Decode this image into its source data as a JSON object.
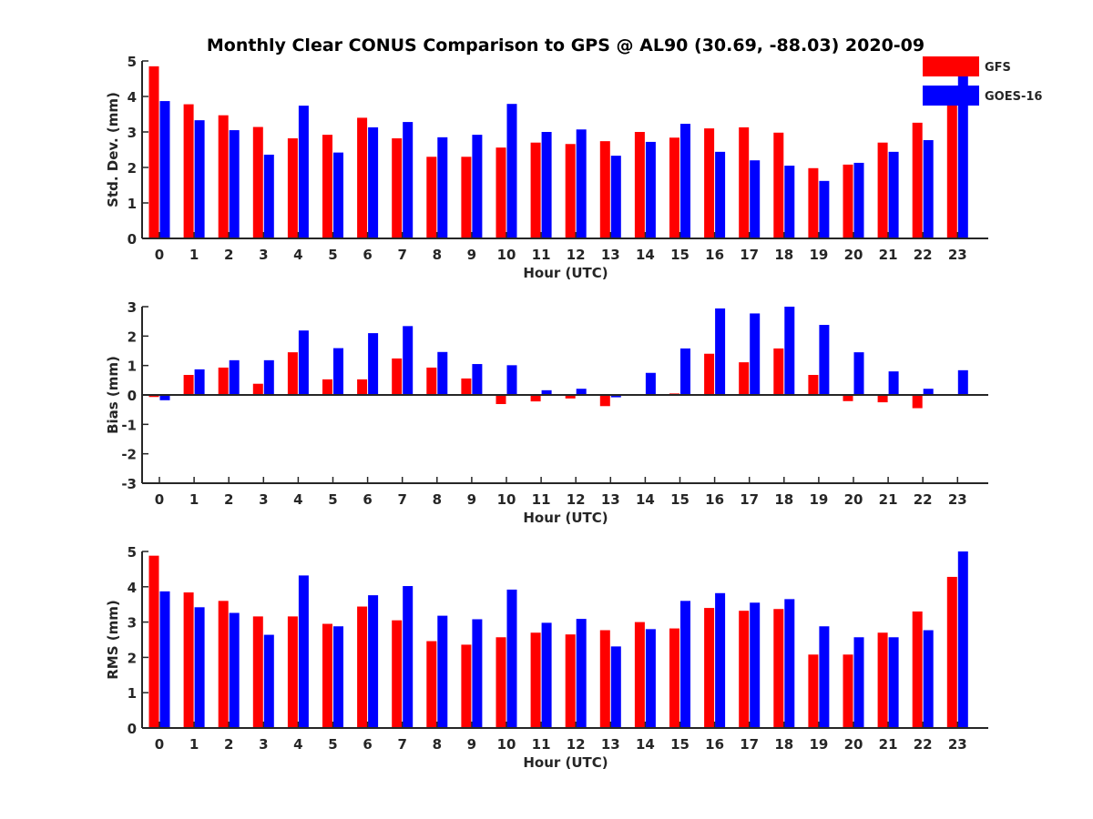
{
  "title": "Monthly Clear CONUS Comparison to GPS @ AL90 (30.69, -88.03) 2020-09",
  "colors": {
    "GFS": "#ff0000",
    "GOES-16": "#0000ff"
  },
  "legend": [
    {
      "name": "GFS",
      "color": "#ff0000"
    },
    {
      "name": "GOES-16",
      "color": "#0000ff"
    }
  ],
  "chart_data": [
    {
      "type": "bar",
      "id": "stddev",
      "xlabel": "Hour (UTC)",
      "ylabel": "Std. Dev. (mm)",
      "ylim": [
        0,
        5
      ],
      "yticks": [
        0,
        1,
        2,
        3,
        4,
        5
      ],
      "categories": [
        "0",
        "1",
        "2",
        "3",
        "4",
        "5",
        "6",
        "7",
        "8",
        "9",
        "10",
        "11",
        "12",
        "13",
        "14",
        "15",
        "16",
        "17",
        "18",
        "19",
        "20",
        "21",
        "22",
        "23"
      ],
      "series": [
        {
          "name": "GFS",
          "color": "#ff0000",
          "values": [
            4.85,
            3.78,
            3.47,
            3.14,
            2.82,
            2.92,
            3.4,
            2.82,
            2.3,
            2.3,
            2.56,
            2.7,
            2.66,
            2.74,
            3.0,
            2.84,
            3.1,
            3.13,
            2.98,
            1.98,
            2.08,
            2.7,
            3.26,
            3.9
          ]
        },
        {
          "name": "GOES-16",
          "color": "#0000ff",
          "values": [
            3.87,
            3.33,
            3.05,
            2.36,
            3.74,
            2.42,
            3.13,
            3.28,
            2.85,
            2.92,
            3.79,
            3.0,
            3.07,
            2.33,
            2.72,
            3.23,
            2.44,
            2.2,
            2.05,
            1.62,
            2.13,
            2.44,
            2.77,
            4.8
          ]
        }
      ]
    },
    {
      "type": "bar",
      "id": "bias",
      "xlabel": "Hour (UTC)",
      "ylabel": "Bias (mm)",
      "ylim": [
        -3,
        3
      ],
      "yticks": [
        -3,
        -2,
        -1,
        0,
        1,
        2,
        3
      ],
      "categories": [
        "0",
        "1",
        "2",
        "3",
        "4",
        "5",
        "6",
        "7",
        "8",
        "9",
        "10",
        "11",
        "12",
        "13",
        "14",
        "15",
        "16",
        "17",
        "18",
        "19",
        "20",
        "21",
        "22",
        "23"
      ],
      "series": [
        {
          "name": "GFS",
          "color": "#ff0000",
          "values": [
            -0.07,
            0.68,
            0.93,
            0.38,
            1.45,
            0.53,
            0.53,
            1.24,
            0.93,
            0.56,
            -0.31,
            -0.22,
            -0.12,
            -0.38,
            -0.03,
            0.05,
            1.4,
            1.11,
            1.58,
            0.68,
            -0.21,
            -0.25,
            -0.45,
            -0.03
          ]
        },
        {
          "name": "GOES-16",
          "color": "#0000ff",
          "values": [
            -0.18,
            0.87,
            1.18,
            1.18,
            2.19,
            1.59,
            2.1,
            2.34,
            1.46,
            1.05,
            1.01,
            0.16,
            0.21,
            -0.08,
            0.75,
            1.58,
            2.94,
            2.77,
            3.0,
            2.38,
            1.45,
            0.8,
            0.21,
            0.84
          ]
        }
      ]
    },
    {
      "type": "bar",
      "id": "rms",
      "xlabel": "Hour (UTC)",
      "ylabel": "RMS (mm)",
      "ylim": [
        0,
        5
      ],
      "yticks": [
        0,
        1,
        2,
        3,
        4,
        5
      ],
      "categories": [
        "0",
        "1",
        "2",
        "3",
        "4",
        "5",
        "6",
        "7",
        "8",
        "9",
        "10",
        "11",
        "12",
        "13",
        "14",
        "15",
        "16",
        "17",
        "18",
        "19",
        "20",
        "21",
        "22",
        "23"
      ],
      "series": [
        {
          "name": "GFS",
          "color": "#ff0000",
          "values": [
            4.88,
            3.84,
            3.6,
            3.16,
            3.16,
            2.95,
            3.44,
            3.05,
            2.46,
            2.36,
            2.57,
            2.7,
            2.65,
            2.77,
            3.0,
            2.82,
            3.4,
            3.32,
            3.37,
            2.08,
            2.08,
            2.7,
            3.3,
            4.28
          ]
        },
        {
          "name": "GOES-16",
          "color": "#0000ff",
          "values": [
            3.87,
            3.42,
            3.26,
            2.64,
            4.32,
            2.88,
            3.76,
            4.02,
            3.18,
            3.08,
            3.92,
            2.98,
            3.09,
            2.31,
            2.8,
            3.6,
            3.82,
            3.55,
            3.65,
            2.88,
            2.57,
            2.57,
            2.77,
            5.0
          ]
        }
      ]
    }
  ]
}
